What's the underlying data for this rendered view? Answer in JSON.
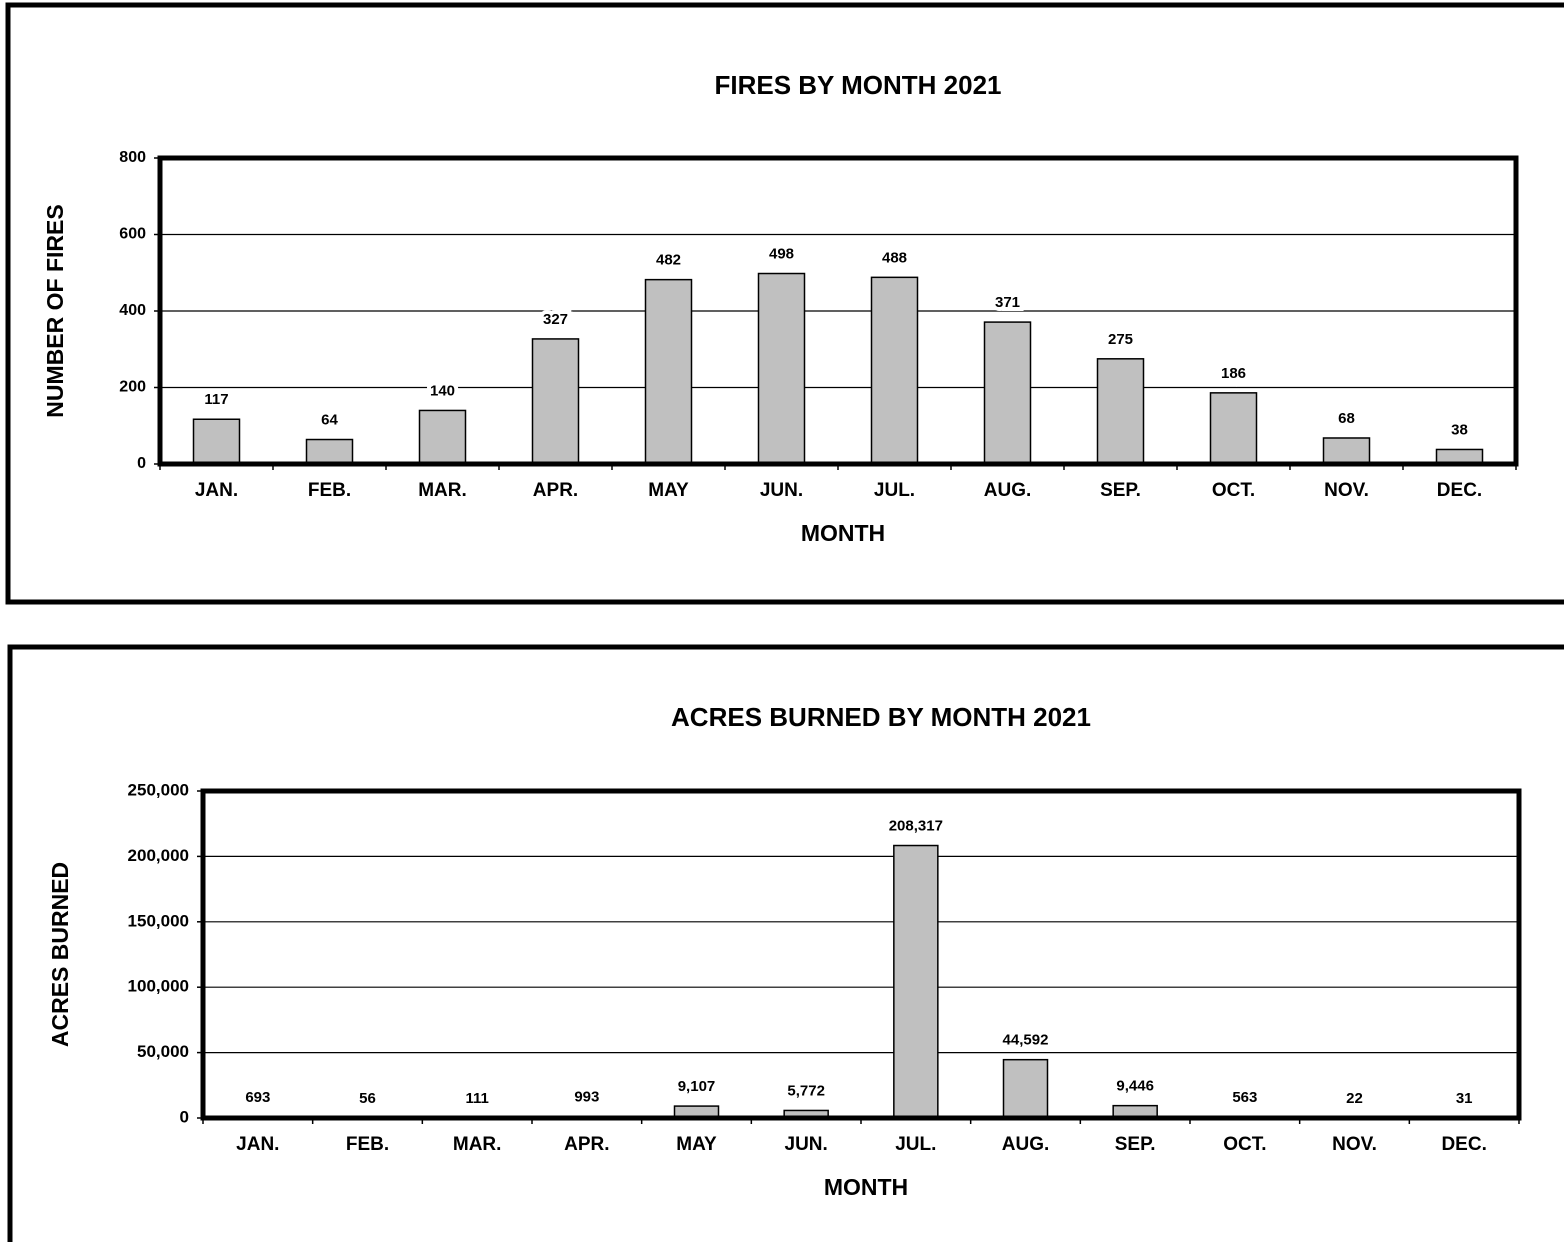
{
  "chart_data": [
    {
      "type": "bar",
      "title": "FIRES BY MONTH 2021",
      "x_label": "MONTH",
      "y_label": "NUMBER OF FIRES",
      "categories": [
        "JAN.",
        "FEB.",
        "MAR.",
        "APR.",
        "MAY",
        "JUN.",
        "JUL.",
        "AUG.",
        "SEP.",
        "OCT.",
        "NOV.",
        "DEC."
      ],
      "values": [
        117,
        64,
        140,
        327,
        482,
        498,
        488,
        371,
        275,
        186,
        68,
        38
      ],
      "color": "#c0c0c0",
      "ylim": [
        0,
        800
      ],
      "yticks": [
        0,
        200,
        400,
        600,
        800
      ],
      "grid": true
    },
    {
      "type": "bar",
      "title": "ACRES BURNED BY MONTH 2021",
      "x_label": "MONTH",
      "y_label": "ACRES BURNED",
      "categories": [
        "JAN.",
        "FEB.",
        "MAR.",
        "APR.",
        "MAY",
        "JUN.",
        "JUL.",
        "AUG.",
        "SEP.",
        "OCT.",
        "NOV.",
        "DEC."
      ],
      "values": [
        693,
        56,
        111,
        993,
        9107,
        5772,
        208317,
        44592,
        9446,
        563,
        22,
        31
      ],
      "value_labels": [
        "693",
        "56",
        "111",
        "993",
        "9,107",
        "5,772",
        "208,317",
        "44,592",
        "9,446",
        "563",
        "22",
        "31"
      ],
      "color": "#c0c0c0",
      "ylim": [
        0,
        250000
      ],
      "yticks": [
        0,
        {
          "value": 50000,
          "label": "50,000"
        },
        {
          "value": 100000,
          "label": "100,000"
        },
        {
          "value": 150000,
          "label": "150,000"
        },
        {
          "value": 200000,
          "label": "200,000"
        },
        {
          "value": 250000,
          "label": "250,000"
        }
      ],
      "grid": true
    }
  ]
}
